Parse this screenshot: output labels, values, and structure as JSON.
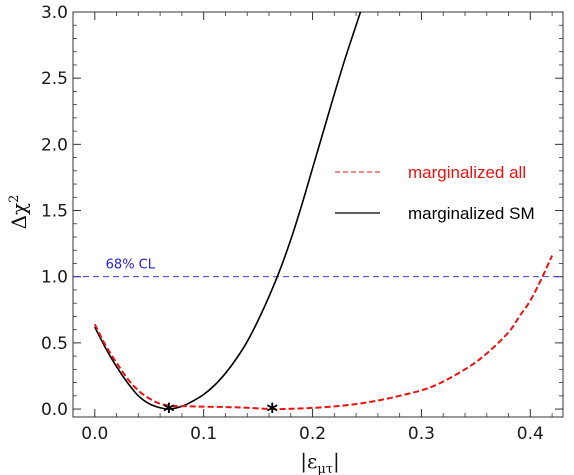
{
  "chart_data": {
    "type": "line",
    "title": "",
    "xlabel": "|ε",
    "xlabel_sub": "μτ",
    "xlabel_end": "|",
    "ylabel": "Δχ",
    "ylabel_sup": "2",
    "xlim": [
      -0.02,
      0.43
    ],
    "ylim": [
      -0.06,
      3.0
    ],
    "x_ticks": [
      0.0,
      0.1,
      0.2,
      0.3,
      0.4
    ],
    "x_tick_labels": [
      "0.0",
      "0.1",
      "0.2",
      "0.3",
      "0.4"
    ],
    "y_ticks": [
      0.0,
      0.5,
      1.0,
      1.5,
      2.0,
      2.5,
      3.0
    ],
    "y_tick_labels": [
      "0.0",
      "0.5",
      "1.0",
      "1.5",
      "2.0",
      "2.5",
      "3.0"
    ],
    "grid": false,
    "legend_position": "center-right",
    "series": [
      {
        "name": "marginalized all",
        "color": "#ee1111",
        "style": "dashed",
        "x": [
          0.0,
          0.01,
          0.02,
          0.03,
          0.04,
          0.05,
          0.06,
          0.07,
          0.08,
          0.09,
          0.1,
          0.12,
          0.14,
          0.163,
          0.19,
          0.22,
          0.25,
          0.28,
          0.31,
          0.34,
          0.36,
          0.38,
          0.39,
          0.4,
          0.41,
          0.42
        ],
        "y": [
          0.64,
          0.48,
          0.35,
          0.23,
          0.14,
          0.08,
          0.04,
          0.025,
          0.022,
          0.02,
          0.018,
          0.015,
          0.01,
          0.0,
          0.005,
          0.02,
          0.05,
          0.1,
          0.17,
          0.3,
          0.42,
          0.58,
          0.7,
          0.82,
          0.98,
          1.16
        ]
      },
      {
        "name": "marginalized SM",
        "color": "#000000",
        "style": "solid",
        "x": [
          0.0,
          0.01,
          0.02,
          0.03,
          0.04,
          0.05,
          0.06,
          0.068,
          0.08,
          0.09,
          0.1,
          0.11,
          0.12,
          0.13,
          0.14,
          0.15,
          0.16,
          0.17,
          0.18,
          0.19,
          0.2,
          0.21,
          0.22,
          0.23,
          0.24,
          0.244
        ],
        "y": [
          0.62,
          0.46,
          0.32,
          0.2,
          0.1,
          0.04,
          0.01,
          0.0,
          0.02,
          0.06,
          0.11,
          0.18,
          0.27,
          0.38,
          0.51,
          0.67,
          0.85,
          1.05,
          1.28,
          1.54,
          1.82,
          2.1,
          2.38,
          2.65,
          2.9,
          3.0
        ]
      }
    ],
    "reference_line": {
      "y": 1.0,
      "label": "68% CL",
      "color": "#2222dd",
      "style": "dashed"
    },
    "markers": [
      {
        "x": 0.068,
        "y": 0.0,
        "symbol": "*",
        "color": "#000000"
      },
      {
        "x": 0.163,
        "y": 0.0,
        "symbol": "*",
        "color": "#000000"
      }
    ]
  }
}
